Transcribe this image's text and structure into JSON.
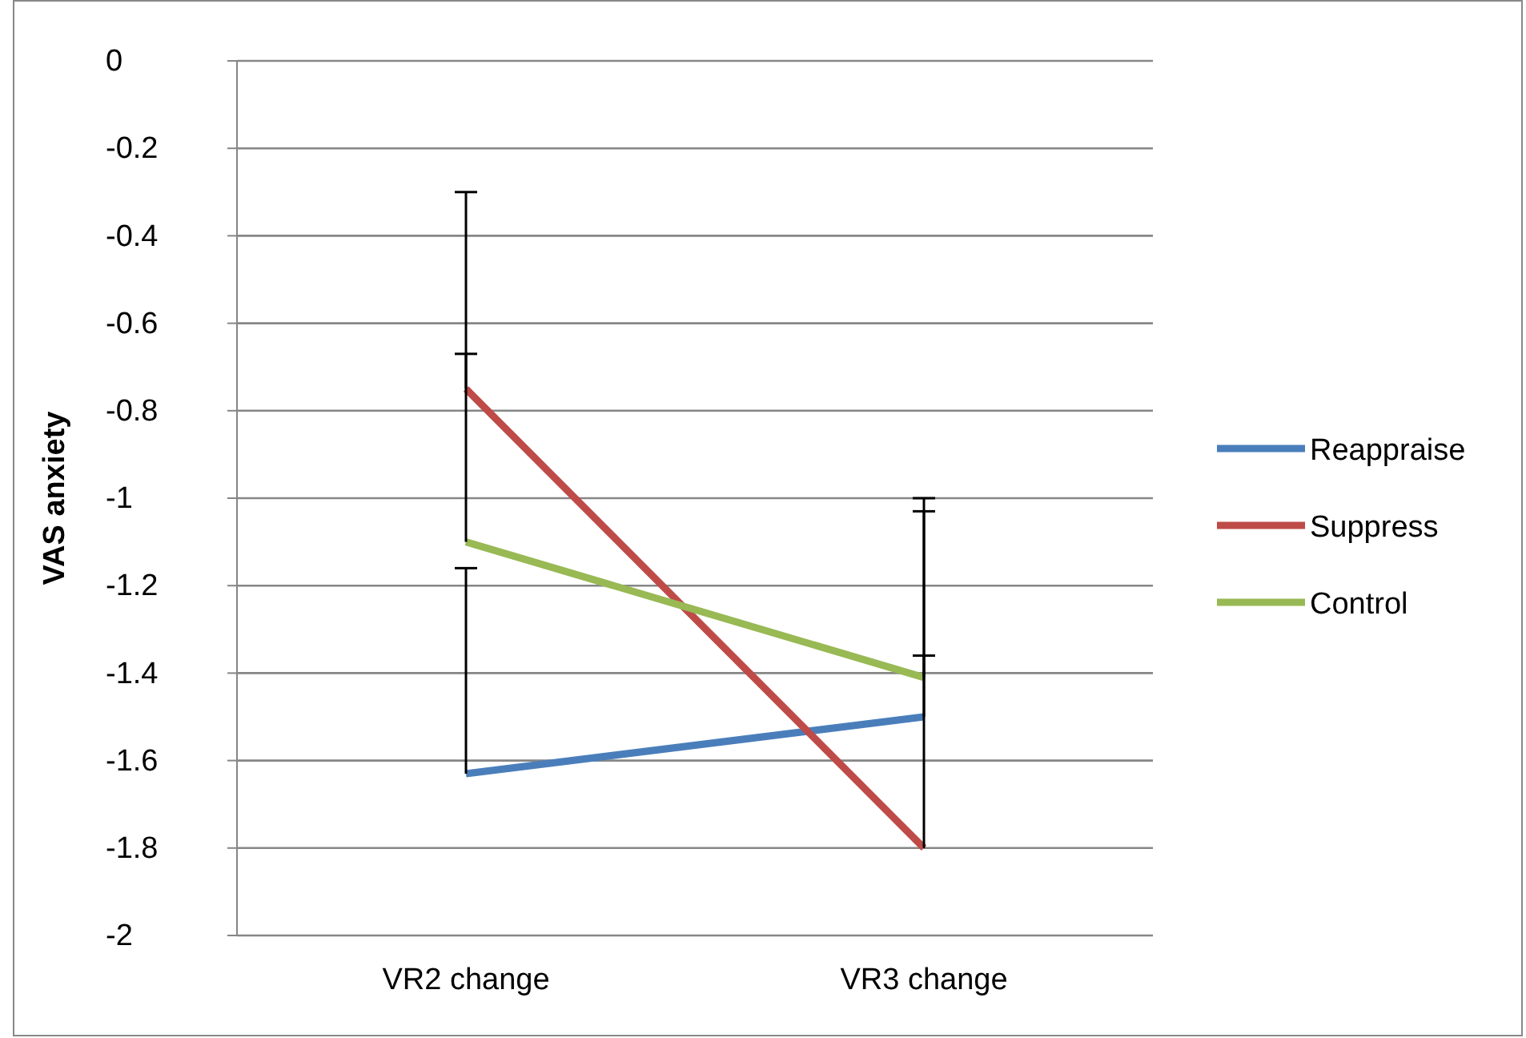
{
  "chart_data": {
    "type": "line",
    "ylabel": "VAS anxiety",
    "categories": [
      "VR2 change",
      "VR3 change"
    ],
    "series": [
      {
        "name": "Reappraise",
        "color": "#4a7ebb",
        "values": [
          -1.63,
          -1.5
        ],
        "errors": [
          [
            -1.63,
            -1.16
          ],
          [
            -1.5,
            -1.03
          ]
        ]
      },
      {
        "name": "Suppress",
        "color": "#be4b48",
        "values": [
          -0.75,
          -1.8
        ],
        "errors": [
          [
            -0.75,
            -0.3
          ],
          [
            -1.8,
            -1.36
          ]
        ]
      },
      {
        "name": "Control",
        "color": "#98b954",
        "values": [
          -1.1,
          -1.41
        ],
        "errors": [
          [
            -1.1,
            -0.67
          ],
          [
            -1.41,
            -1
          ]
        ]
      }
    ],
    "ylim": [
      -2,
      0
    ],
    "yticks": [
      -2,
      -1.8,
      -1.6,
      -1.4,
      -1.2,
      -1,
      -0.8,
      -0.6,
      -0.4,
      -0.2,
      0
    ],
    "grid": "y",
    "legend": "right",
    "marker": "none",
    "line_style": "solid"
  }
}
